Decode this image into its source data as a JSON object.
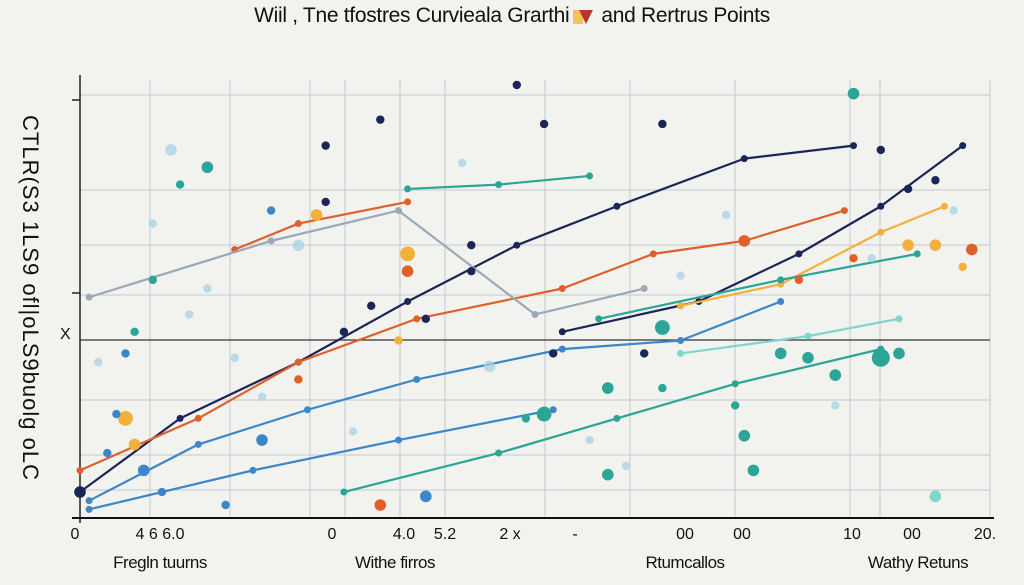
{
  "chart_data": {
    "type": "line",
    "title_left": "Wiil , Tne tfostres Curvieala Grarthi",
    "title_right": "and Rertrus Points",
    "ylabel": "CTLR(S3 1LS9 ofl|oLS9buolg oLC",
    "ylabel_mark": "X",
    "xlim": [
      0,
      100
    ],
    "ylim": [
      0,
      100
    ],
    "grid": true,
    "x_tick_labels": [
      "0",
      "4 6 6.0",
      "0",
      "4.0",
      "5.2",
      "2 x",
      "-",
      "00",
      "00",
      "10",
      "00",
      "20."
    ],
    "x_categories": [
      "Fregln tuurns",
      "Withe firros",
      "Rtumcallos",
      "Wathy Retuns"
    ],
    "colors": {
      "navy": "#1b2557",
      "orange": "#e0602a",
      "blue": "#3b87c9",
      "teal": "#2aa596",
      "grey": "#9aa8b8",
      "light": "#a8d2e4",
      "amber": "#f2b13a",
      "mint": "#7fd6cc"
    },
    "series": [
      {
        "name": "navy-a",
        "color": "navy",
        "x": [
          0,
          11,
          24,
          36,
          48,
          59,
          73,
          85
        ],
        "y": [
          6,
          23,
          36,
          50,
          63,
          72,
          83,
          86
        ]
      },
      {
        "name": "navy-b",
        "color": "navy",
        "x": [
          53,
          68,
          79,
          88,
          97
        ],
        "y": [
          43,
          50,
          61,
          72,
          86
        ]
      },
      {
        "name": "orange-a",
        "color": "orange",
        "x": [
          0,
          13,
          24,
          37,
          53,
          63,
          73,
          84
        ],
        "y": [
          11,
          23,
          36,
          46,
          53,
          61,
          64,
          71
        ]
      },
      {
        "name": "orange-b",
        "color": "orange",
        "x": [
          17,
          24,
          36
        ],
        "y": [
          62,
          68,
          73
        ]
      },
      {
        "name": "amber",
        "color": "amber",
        "x": [
          66,
          77,
          88,
          95
        ],
        "y": [
          49,
          54,
          66,
          72
        ]
      },
      {
        "name": "blue-a",
        "color": "blue",
        "x": [
          1,
          13,
          25,
          37,
          53,
          66,
          77
        ],
        "y": [
          4,
          17,
          25,
          32,
          39,
          41,
          50
        ]
      },
      {
        "name": "blue-b",
        "color": "blue",
        "x": [
          1,
          19,
          35,
          52
        ],
        "y": [
          2,
          11,
          18,
          25
        ]
      },
      {
        "name": "teal-a",
        "color": "teal",
        "x": [
          29,
          46,
          59,
          72,
          88
        ],
        "y": [
          6,
          15,
          23,
          31,
          39
        ]
      },
      {
        "name": "teal-b",
        "color": "teal",
        "x": [
          36,
          46,
          56
        ],
        "y": [
          76,
          77,
          79
        ]
      },
      {
        "name": "teal-c",
        "color": "teal",
        "x": [
          57,
          77,
          92
        ],
        "y": [
          46,
          55,
          61
        ]
      },
      {
        "name": "mint",
        "color": "mint",
        "x": [
          66,
          80,
          90
        ],
        "y": [
          38,
          42,
          46
        ]
      },
      {
        "name": "grey",
        "color": "grey",
        "x": [
          1,
          21,
          35,
          50,
          62
        ],
        "y": [
          51,
          64,
          71,
          47,
          53
        ]
      }
    ],
    "points": [
      {
        "x": 48,
        "y": 100,
        "c": "navy",
        "s": 2
      },
      {
        "x": 33,
        "y": 92,
        "c": "navy",
        "s": 2
      },
      {
        "x": 51,
        "y": 91,
        "c": "navy",
        "s": 2
      },
      {
        "x": 64,
        "y": 91,
        "c": "navy",
        "s": 2
      },
      {
        "x": 27,
        "y": 86,
        "c": "navy",
        "s": 2
      },
      {
        "x": 27,
        "y": 73,
        "c": "navy",
        "s": 2
      },
      {
        "x": 43,
        "y": 63,
        "c": "navy",
        "s": 2
      },
      {
        "x": 43,
        "y": 57,
        "c": "navy",
        "s": 2
      },
      {
        "x": 29,
        "y": 43,
        "c": "navy",
        "s": 2
      },
      {
        "x": 38,
        "y": 46,
        "c": "navy",
        "s": 2
      },
      {
        "x": 52,
        "y": 38,
        "c": "navy",
        "s": 2
      },
      {
        "x": 62,
        "y": 38,
        "c": "navy",
        "s": 2
      },
      {
        "x": 91,
        "y": 76,
        "c": "navy",
        "s": 2
      },
      {
        "x": 94,
        "y": 78,
        "c": "navy",
        "s": 2
      },
      {
        "x": 88,
        "y": 85,
        "c": "navy",
        "s": 2
      },
      {
        "x": 32,
        "y": 49,
        "c": "navy",
        "s": 2
      },
      {
        "x": 0,
        "y": 6,
        "c": "navy",
        "s": 3
      },
      {
        "x": 85,
        "y": 98,
        "c": "teal",
        "s": 3
      },
      {
        "x": 14,
        "y": 81,
        "c": "teal",
        "s": 3
      },
      {
        "x": 11,
        "y": 77,
        "c": "teal",
        "s": 2
      },
      {
        "x": 8,
        "y": 55,
        "c": "teal",
        "s": 2
      },
      {
        "x": 6,
        "y": 43,
        "c": "teal",
        "s": 2
      },
      {
        "x": 58,
        "y": 30,
        "c": "teal",
        "s": 3
      },
      {
        "x": 51,
        "y": 24,
        "c": "teal",
        "s": 4
      },
      {
        "x": 49,
        "y": 23,
        "c": "teal",
        "s": 2
      },
      {
        "x": 73,
        "y": 19,
        "c": "teal",
        "s": 3
      },
      {
        "x": 64,
        "y": 30,
        "c": "teal",
        "s": 2
      },
      {
        "x": 77,
        "y": 38,
        "c": "teal",
        "s": 3
      },
      {
        "x": 80,
        "y": 37,
        "c": "teal",
        "s": 3
      },
      {
        "x": 83,
        "y": 33,
        "c": "teal",
        "s": 3
      },
      {
        "x": 88,
        "y": 37,
        "c": "teal",
        "s": 5
      },
      {
        "x": 90,
        "y": 38,
        "c": "teal",
        "s": 3
      },
      {
        "x": 58,
        "y": 10,
        "c": "teal",
        "s": 3
      },
      {
        "x": 72,
        "y": 26,
        "c": "teal",
        "s": 2
      },
      {
        "x": 74,
        "y": 11,
        "c": "teal",
        "s": 3
      },
      {
        "x": 94,
        "y": 5,
        "c": "mint",
        "s": 3
      },
      {
        "x": 64,
        "y": 44,
        "c": "teal",
        "s": 4
      },
      {
        "x": 5,
        "y": 23,
        "c": "amber",
        "s": 4
      },
      {
        "x": 6,
        "y": 17,
        "c": "amber",
        "s": 3
      },
      {
        "x": 26,
        "y": 70,
        "c": "amber",
        "s": 3
      },
      {
        "x": 36,
        "y": 61,
        "c": "amber",
        "s": 4
      },
      {
        "x": 36,
        "y": 57,
        "c": "orange",
        "s": 3
      },
      {
        "x": 24,
        "y": 32,
        "c": "orange",
        "s": 2
      },
      {
        "x": 73,
        "y": 64,
        "c": "orange",
        "s": 3
      },
      {
        "x": 85,
        "y": 60,
        "c": "orange",
        "s": 2
      },
      {
        "x": 91,
        "y": 63,
        "c": "amber",
        "s": 3
      },
      {
        "x": 94,
        "y": 63,
        "c": "amber",
        "s": 3
      },
      {
        "x": 98,
        "y": 62,
        "c": "orange",
        "s": 3
      },
      {
        "x": 97,
        "y": 58,
        "c": "amber",
        "s": 2
      },
      {
        "x": 33,
        "y": 3,
        "c": "orange",
        "s": 3
      },
      {
        "x": 35,
        "y": 41,
        "c": "amber",
        "s": 2
      },
      {
        "x": 79,
        "y": 55,
        "c": "orange",
        "s": 2
      },
      {
        "x": 5,
        "y": 38,
        "c": "blue",
        "s": 2
      },
      {
        "x": 3,
        "y": 15,
        "c": "blue",
        "s": 2
      },
      {
        "x": 7,
        "y": 11,
        "c": "blue",
        "s": 3
      },
      {
        "x": 38,
        "y": 5,
        "c": "blue",
        "s": 3
      },
      {
        "x": 21,
        "y": 71,
        "c": "blue",
        "s": 2
      },
      {
        "x": 20,
        "y": 18,
        "c": "blue",
        "s": 3
      },
      {
        "x": 16,
        "y": 3,
        "c": "blue",
        "s": 2
      },
      {
        "x": 9,
        "y": 6,
        "c": "blue",
        "s": 2
      },
      {
        "x": 4,
        "y": 24,
        "c": "blue",
        "s": 2
      },
      {
        "x": 10,
        "y": 85,
        "c": "light",
        "s": 3
      },
      {
        "x": 8,
        "y": 68,
        "c": "light",
        "s": 2
      },
      {
        "x": 14,
        "y": 53,
        "c": "light",
        "s": 2
      },
      {
        "x": 24,
        "y": 63,
        "c": "light",
        "s": 3
      },
      {
        "x": 17,
        "y": 37,
        "c": "light",
        "s": 2
      },
      {
        "x": 12,
        "y": 47,
        "c": "light",
        "s": 2
      },
      {
        "x": 20,
        "y": 28,
        "c": "light",
        "s": 2
      },
      {
        "x": 45,
        "y": 35,
        "c": "light",
        "s": 3
      },
      {
        "x": 56,
        "y": 18,
        "c": "light",
        "s": 2
      },
      {
        "x": 66,
        "y": 56,
        "c": "light",
        "s": 2
      },
      {
        "x": 71,
        "y": 70,
        "c": "light",
        "s": 2
      },
      {
        "x": 83,
        "y": 26,
        "c": "light",
        "s": 2
      },
      {
        "x": 96,
        "y": 71,
        "c": "light",
        "s": 2
      },
      {
        "x": 87,
        "y": 60,
        "c": "light",
        "s": 2
      },
      {
        "x": 30,
        "y": 20,
        "c": "light",
        "s": 2
      },
      {
        "x": 2,
        "y": 36,
        "c": "light",
        "s": 2
      },
      {
        "x": 42,
        "y": 82,
        "c": "light",
        "s": 2
      },
      {
        "x": 60,
        "y": 12,
        "c": "light",
        "s": 2
      }
    ]
  }
}
